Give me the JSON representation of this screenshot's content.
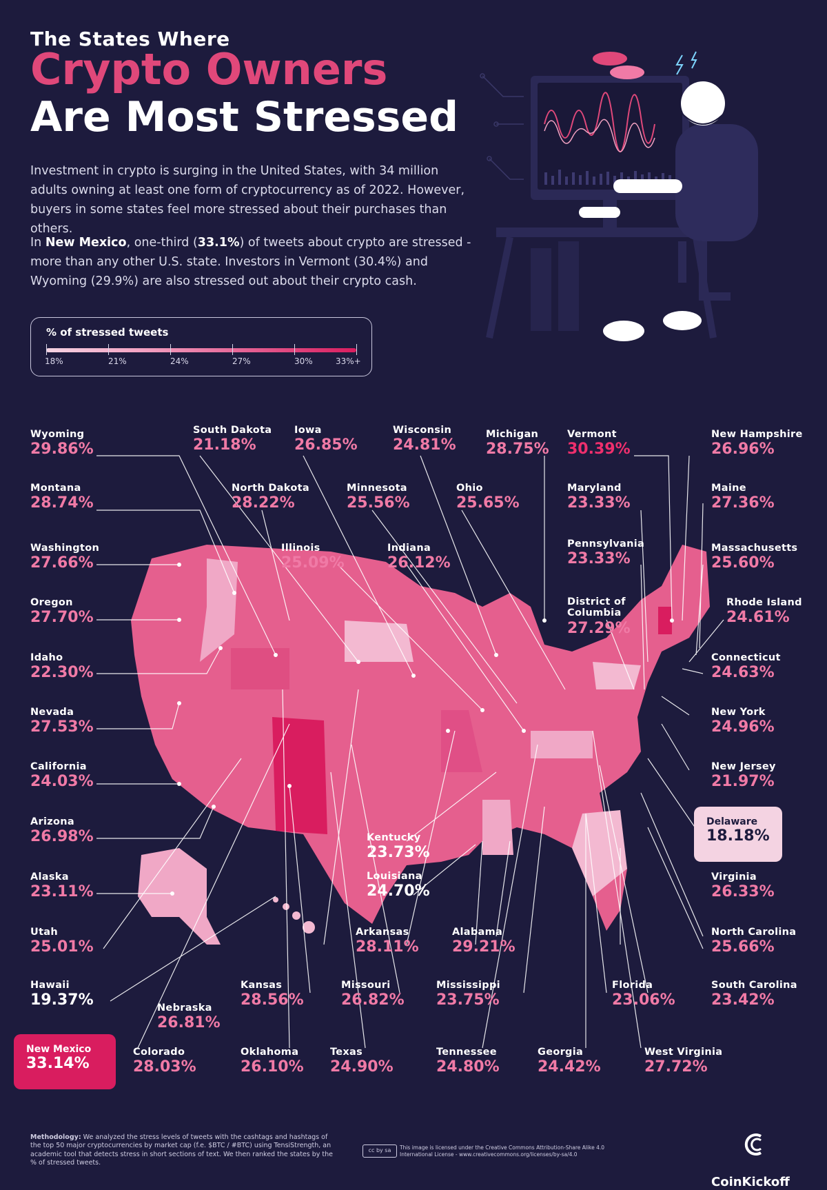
{
  "title": {
    "line1": "The States Where",
    "line2": "Crypto Owners",
    "line3": "Are Most Stressed"
  },
  "intro": {
    "p1": "Investment in crypto is surging in the United States, with 34 million adults owning at least one form of cryptocurrency as of 2022. However, buyers in some states feel more stressed about their purchases than others.",
    "p2_pre": "In ",
    "p2_state": "New Mexico",
    "p2_mid": ", one-third (",
    "p2_pct": "33.1%",
    "p2_post": ") of tweets about crypto are stressed - more than any other U.S. state. Investors in Vermont (30.4%) and Wyoming (29.9%) are also stressed out about their crypto cash."
  },
  "legend": {
    "title": "% of stressed tweets",
    "ticks": [
      "18%",
      "21%",
      "24%",
      "27%",
      "30%",
      "33%+"
    ],
    "colors": [
      "#f4d3e2",
      "#d91d5f"
    ]
  },
  "states": [
    {
      "name": "Wyoming",
      "value": "29.86%"
    },
    {
      "name": "South Dakota",
      "value": "21.18%"
    },
    {
      "name": "Iowa",
      "value": "26.85%"
    },
    {
      "name": "Wisconsin",
      "value": "24.81%"
    },
    {
      "name": "Michigan",
      "value": "28.75%"
    },
    {
      "name": "Vermont",
      "value": "30.39%"
    },
    {
      "name": "New Hampshire",
      "value": "26.96%"
    },
    {
      "name": "Montana",
      "value": "28.74%"
    },
    {
      "name": "North Dakota",
      "value": "28.22%"
    },
    {
      "name": "Minnesota",
      "value": "25.56%"
    },
    {
      "name": "Ohio",
      "value": "25.65%"
    },
    {
      "name": "Maryland",
      "value": "23.33%"
    },
    {
      "name": "Maine",
      "value": "27.36%"
    },
    {
      "name": "Washington",
      "value": "27.66%"
    },
    {
      "name": "Illinois",
      "value": "25.09%"
    },
    {
      "name": "Indiana",
      "value": "26.12%"
    },
    {
      "name": "Pennsylvania",
      "value": "23.33%"
    },
    {
      "name": "Massachusetts",
      "value": "25.60%"
    },
    {
      "name": "Oregon",
      "value": "27.70%"
    },
    {
      "name": "District of Columbia",
      "value": "27.29%"
    },
    {
      "name": "Rhode Island",
      "value": "24.61%"
    },
    {
      "name": "Idaho",
      "value": "22.30%"
    },
    {
      "name": "Connecticut",
      "value": "24.63%"
    },
    {
      "name": "Nevada",
      "value": "27.53%"
    },
    {
      "name": "New York",
      "value": "24.96%"
    },
    {
      "name": "California",
      "value": "24.03%"
    },
    {
      "name": "New Jersey",
      "value": "21.97%"
    },
    {
      "name": "Arizona",
      "value": "26.98%"
    },
    {
      "name": "Kentucky",
      "value": "23.73%"
    },
    {
      "name": "Delaware",
      "value": "18.18%"
    },
    {
      "name": "Alaska",
      "value": "23.11%"
    },
    {
      "name": "Louisiana",
      "value": "24.70%"
    },
    {
      "name": "Virginia",
      "value": "26.33%"
    },
    {
      "name": "Utah",
      "value": "25.01%"
    },
    {
      "name": "Arkansas",
      "value": "28.11%"
    },
    {
      "name": "Alabama",
      "value": "29.21%"
    },
    {
      "name": "North Carolina",
      "value": "25.66%"
    },
    {
      "name": "Hawaii",
      "value": "19.37%"
    },
    {
      "name": "Kansas",
      "value": "28.56%"
    },
    {
      "name": "Missouri",
      "value": "26.82%"
    },
    {
      "name": "Mississippi",
      "value": "23.75%"
    },
    {
      "name": "Florida",
      "value": "23.06%"
    },
    {
      "name": "South Carolina",
      "value": "23.42%"
    },
    {
      "name": "Nebraska",
      "value": "26.81%"
    },
    {
      "name": "New Mexico",
      "value": "33.14%"
    },
    {
      "name": "Colorado",
      "value": "28.03%"
    },
    {
      "name": "Oklahoma",
      "value": "26.10%"
    },
    {
      "name": "Texas",
      "value": "24.90%"
    },
    {
      "name": "Tennessee",
      "value": "24.80%"
    },
    {
      "name": "Georgia",
      "value": "24.42%"
    },
    {
      "name": "West Virginia",
      "value": "27.72%"
    }
  ],
  "footer": {
    "methodology_label": "Methodology:",
    "methodology": "We analyzed the stress levels of tweets with the cashtags and hashtags of the top 50 major cryptocurrencies by market cap (f.e. $BTC / #BTC) using TensiStrength, an academic tool that detects stress in short sections of text. We then ranked the states by the % of stressed tweets.",
    "license": "This image is licensed under the Creative Commons Attribution-Share Alike 4.0 International License - www.creativecommons.org/licenses/by-sa/4.0",
    "cc_badge": "cc by sa",
    "brand": "CoinKickoff"
  },
  "colors": {
    "background": "#1d1b3d",
    "accent": "#e0487a",
    "max": "#d91d5f",
    "min": "#f4d3e2"
  }
}
